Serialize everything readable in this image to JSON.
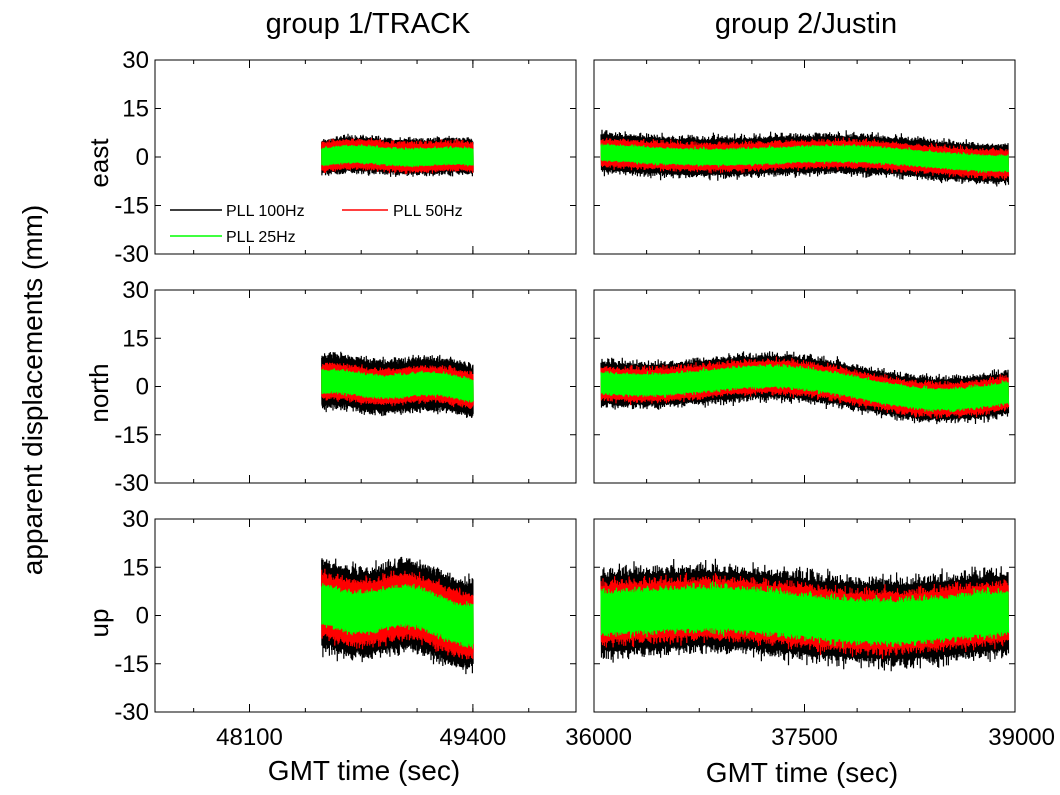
{
  "figure": {
    "ylabel": "apparent displacements (mm)",
    "columns": [
      {
        "title": "group 1/TRACK",
        "xlabel": "GMT time (sec)"
      },
      {
        "title": "group 2/Justin",
        "xlabel": "GMT time (sec)"
      }
    ],
    "rows": [
      "east",
      "north",
      "up"
    ],
    "colors": {
      "pll100": "#000000",
      "pll50": "#ff0000",
      "pll25": "#00ff00"
    }
  },
  "chart_data": {
    "type": "line",
    "grid": false,
    "legend": {
      "placement": "inside first panel, lower-left",
      "entries": [
        "PLL 100Hz",
        "PLL 50Hz",
        "PLL 25Hz"
      ]
    },
    "panels": [
      {
        "name": "group 1/TRACK",
        "xlabel": "GMT time (sec)",
        "xlim": [
          47550,
          50000
        ],
        "xticks": [
          48100,
          49400
        ],
        "data_range": [
          48520,
          49400
        ],
        "rows": [
          {
            "label": "east",
            "ylim": [
              -30,
              30
            ],
            "yticks": [
              30,
              15,
              0,
              -15,
              -30
            ],
            "series": [
              {
                "name": "PLL 100Hz",
                "amplitude_mm": 6,
                "offset_range_mm": [
                  -1,
                  1
                ]
              },
              {
                "name": "PLL 50Hz",
                "amplitude_mm": 5,
                "offset_range_mm": [
                  -1,
                  1
                ]
              },
              {
                "name": "PLL 25Hz",
                "amplitude_mm": 3,
                "offset_range_mm": [
                  -1,
                  1
                ]
              }
            ]
          },
          {
            "label": "north",
            "ylim": [
              -30,
              30
            ],
            "yticks": [
              30,
              15,
              0,
              -15,
              -30
            ],
            "series": [
              {
                "name": "PLL 100Hz",
                "amplitude_mm": 9,
                "offset_range_mm": [
                  -2,
                  2
                ]
              },
              {
                "name": "PLL 50Hz",
                "amplitude_mm": 6,
                "offset_range_mm": [
                  -2,
                  2
                ]
              },
              {
                "name": "PLL 25Hz",
                "amplitude_mm": 4,
                "offset_range_mm": [
                  -2,
                  2
                ]
              }
            ]
          },
          {
            "label": "up",
            "ylim": [
              -30,
              30
            ],
            "yticks": [
              30,
              15,
              0,
              -15,
              -30
            ],
            "series": [
              {
                "name": "PLL 100Hz",
                "amplitude_mm": 15,
                "offset_range_mm": [
                  -3,
                  5
                ]
              },
              {
                "name": "PLL 50Hz",
                "amplitude_mm": 11,
                "offset_range_mm": [
                  -3,
                  5
                ]
              },
              {
                "name": "PLL 25Hz",
                "amplitude_mm": 7,
                "offset_range_mm": [
                  -3,
                  5
                ]
              }
            ]
          }
        ]
      },
      {
        "name": "group 2/Justin",
        "xlabel": "GMT time (sec)",
        "xlim": [
          36000,
          39000
        ],
        "xticks": [
          36000,
          37500,
          39000
        ],
        "data_range": [
          36050,
          38950
        ],
        "rows": [
          {
            "label": "east",
            "ylim": [
              -30,
              30
            ],
            "yticks": [
              30,
              15,
              0,
              -15,
              -30
            ],
            "series": [
              {
                "name": "PLL 100Hz",
                "amplitude_mm": 7,
                "offset_range_mm": [
                  -2,
                  2
                ]
              },
              {
                "name": "PLL 50Hz",
                "amplitude_mm": 5,
                "offset_range_mm": [
                  -2,
                  2
                ]
              },
              {
                "name": "PLL 25Hz",
                "amplitude_mm": 3,
                "offset_range_mm": [
                  -2,
                  2
                ]
              }
            ]
          },
          {
            "label": "north",
            "ylim": [
              -30,
              30
            ],
            "yticks": [
              30,
              15,
              0,
              -15,
              -30
            ],
            "series": [
              {
                "name": "PLL 100Hz",
                "amplitude_mm": 8,
                "offset_range_mm": [
                  -4,
                  5
                ]
              },
              {
                "name": "PLL 50Hz",
                "amplitude_mm": 6,
                "offset_range_mm": [
                  -4,
                  5
                ]
              },
              {
                "name": "PLL 25Hz",
                "amplitude_mm": 4,
                "offset_range_mm": [
                  -4,
                  5
                ]
              }
            ]
          },
          {
            "label": "up",
            "ylim": [
              -30,
              30
            ],
            "yticks": [
              30,
              15,
              0,
              -15,
              -30
            ],
            "series": [
              {
                "name": "PLL 100Hz",
                "amplitude_mm": 15,
                "offset_range_mm": [
                  -2,
                  3
                ]
              },
              {
                "name": "PLL 50Hz",
                "amplitude_mm": 11,
                "offset_range_mm": [
                  -2,
                  3
                ]
              },
              {
                "name": "PLL 25Hz",
                "amplitude_mm": 8,
                "offset_range_mm": [
                  -2,
                  3
                ]
              }
            ]
          }
        ]
      }
    ]
  }
}
